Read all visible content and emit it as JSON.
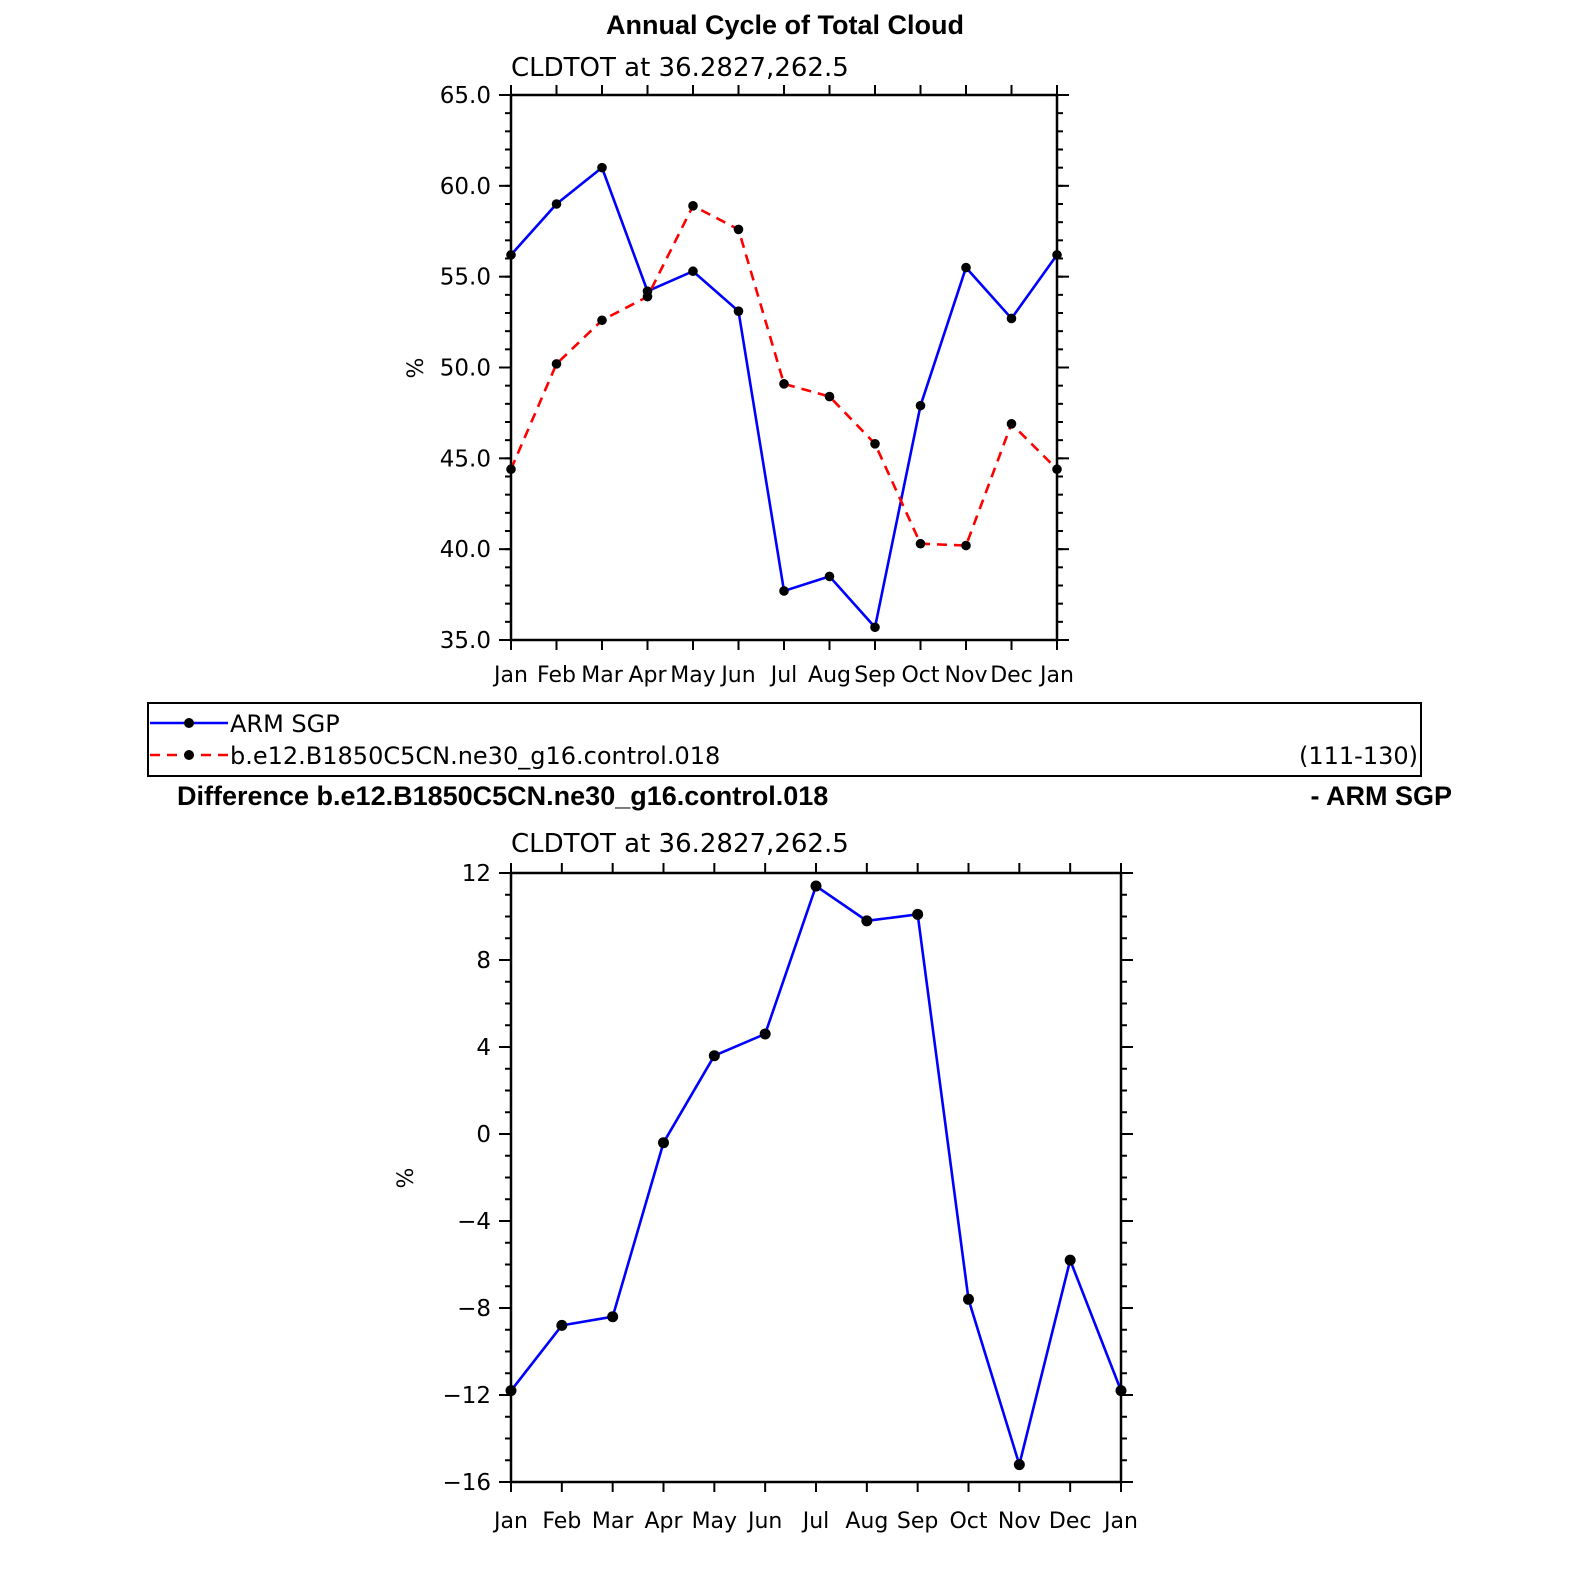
{
  "figure_title": "Annual Cycle of Total Cloud",
  "legend": {
    "entries": [
      {
        "label": "ARM SGP",
        "color": "#0000ff",
        "style": "solid"
      },
      {
        "label": "b.e12.B1850C5CN.ne30_g16.control.018",
        "color": "#ff0000",
        "style": "dashed"
      }
    ],
    "years": "(111-130)"
  },
  "diff_title_left": "Difference b.e12.B1850C5CN.ne30_g16.control.018",
  "diff_title_right": "- ARM SGP",
  "chart_data": [
    {
      "type": "line",
      "subtitle": "CLDTOT at 36.2827,262.5",
      "ylabel": "%",
      "categories": [
        "Jan",
        "Feb",
        "Mar",
        "Apr",
        "May",
        "Jun",
        "Jul",
        "Aug",
        "Sep",
        "Oct",
        "Nov",
        "Dec",
        "Jan"
      ],
      "ylim": [
        35,
        65
      ],
      "yticks": [
        35,
        40,
        45,
        50,
        55,
        60,
        65
      ],
      "ytick_labels": [
        "35.0",
        "40.0",
        "45.0",
        "50.0",
        "55.0",
        "60.0",
        "65.0"
      ],
      "series": [
        {
          "name": "ARM SGP",
          "color": "#0000ff",
          "style": "solid",
          "values": [
            56.2,
            59.0,
            61.0,
            54.2,
            55.3,
            53.1,
            37.7,
            38.5,
            35.7,
            47.9,
            55.5,
            52.7,
            56.2
          ]
        },
        {
          "name": "b.e12.B1850C5CN.ne30_g16.control.018",
          "color": "#ff0000",
          "style": "dashed",
          "values": [
            44.4,
            50.2,
            52.6,
            53.9,
            58.9,
            57.6,
            49.1,
            48.4,
            45.8,
            40.3,
            40.2,
            46.9,
            44.4
          ]
        }
      ]
    },
    {
      "type": "line",
      "subtitle": "CLDTOT at 36.2827,262.5",
      "ylabel": "%",
      "categories": [
        "Jan",
        "Feb",
        "Mar",
        "Apr",
        "May",
        "Jun",
        "Jul",
        "Aug",
        "Sep",
        "Oct",
        "Nov",
        "Dec",
        "Jan"
      ],
      "ylim": [
        -16,
        12
      ],
      "yticks": [
        -16,
        -12,
        -8,
        -4,
        0,
        4,
        8,
        12
      ],
      "ytick_labels": [
        "−16",
        "−12",
        "−8",
        "−4",
        "0",
        "4",
        "8",
        "12"
      ],
      "series": [
        {
          "color": "#0000ff",
          "style": "solid",
          "values": [
            -11.8,
            -8.8,
            -8.4,
            -0.4,
            3.6,
            4.6,
            11.4,
            9.8,
            10.1,
            -7.6,
            -15.2,
            -5.8,
            -11.8
          ]
        }
      ]
    }
  ]
}
